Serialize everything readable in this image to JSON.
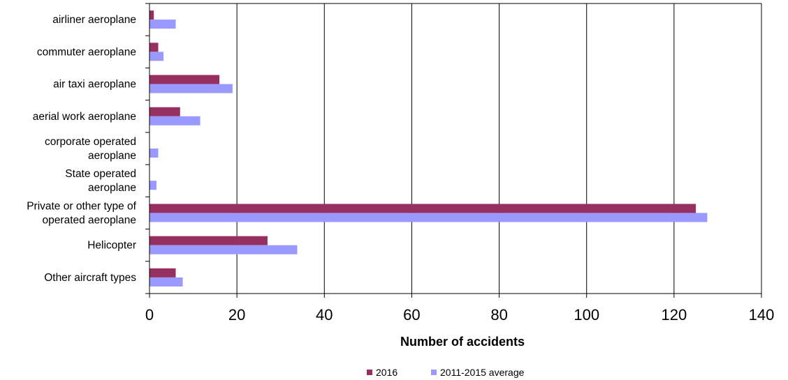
{
  "chart_data": {
    "type": "bar",
    "orientation": "horizontal",
    "categories": [
      "airliner aeroplane",
      "commuter aeroplane",
      "air taxi aeroplane",
      "aerial work aeroplane",
      "corporate operated aeroplane",
      "State operated aeroplane",
      "Private or other type of operated aeroplane",
      "Helicopter",
      "Other aircraft types"
    ],
    "category_lines": [
      [
        "airliner aeroplane"
      ],
      [
        "commuter aeroplane"
      ],
      [
        "air taxi aeroplane"
      ],
      [
        "aerial work aeroplane"
      ],
      [
        "corporate operated",
        "aeroplane"
      ],
      [
        "State operated",
        "aeroplane"
      ],
      [
        "Private or other type of",
        "operated aeroplane"
      ],
      [
        "Helicopter"
      ],
      [
        "Other aircraft types"
      ]
    ],
    "series": [
      {
        "name": "2016",
        "color": "#953060",
        "values": [
          1,
          2,
          16,
          7,
          0,
          0,
          125,
          27,
          6
        ]
      },
      {
        "name": "2011-2015 average",
        "color": "#9999FF",
        "values": [
          6,
          3.2,
          19,
          11.6,
          2,
          1.6,
          127.6,
          33.8,
          7.6
        ]
      }
    ],
    "xlabel": "Number of accidents",
    "ylabel": "",
    "xlim": [
      0,
      140
    ],
    "xticks": [
      0,
      20,
      40,
      60,
      80,
      100,
      120,
      140
    ],
    "grid": "vertical",
    "legend_position": "bottom"
  }
}
